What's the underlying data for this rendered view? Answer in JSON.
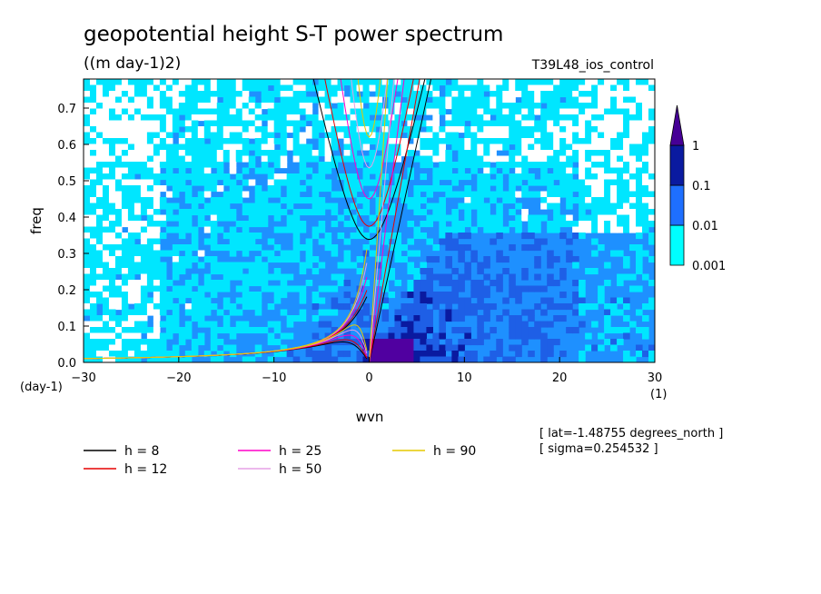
{
  "chart_data": {
    "type": "heatmap",
    "title": "geopotential height S-T power spectrum",
    "units": "((m day-1)2)",
    "experiment": "T39L48_ios_control",
    "xlabel": "wvn",
    "ylabel": "freq",
    "x_unit": "(1)",
    "y_unit": "(day-1)",
    "xlim": [
      -30,
      30
    ],
    "ylim": [
      0,
      0.78
    ],
    "x_ticks": [
      "-30",
      "-20",
      "-10",
      "0",
      "10",
      "20",
      "30"
    ],
    "y_ticks": [
      "0.0",
      "0.1",
      "0.2",
      "0.3",
      "0.4",
      "0.5",
      "0.6",
      "0.7"
    ],
    "colorbar": {
      "levels": [
        "0.001",
        "0.01",
        "0.1",
        "1"
      ],
      "colors": [
        "#00ffff",
        "#1e6fff",
        "#0a1aa0",
        "#460096"
      ]
    },
    "shade_colors": {
      "light": "#00e6ff",
      "mid": "#1e90ff",
      "dark": "#1e5fe6",
      "high": "#0a1aa0",
      "peak": "#5000a0",
      "white": "#ffffff"
    },
    "legend": [
      {
        "label": "h =  8",
        "color": "#000000"
      },
      {
        "label": "h = 25",
        "color": "#ff00c8"
      },
      {
        "label": "h = 90",
        "color": "#e6c800"
      },
      {
        "label": "h = 12",
        "color": "#e60000"
      },
      {
        "label": "h = 50",
        "color": "#e6a0e6"
      }
    ],
    "dispersion_curves": [
      {
        "h": 8,
        "color": "#000000"
      },
      {
        "h": 12,
        "color": "#e60000"
      },
      {
        "h": 25,
        "color": "#ff00c8"
      },
      {
        "h": 50,
        "color": "#e6a0e6"
      },
      {
        "h": 90,
        "color": "#e6c800"
      }
    ],
    "annotations": [
      "[ lat=-1.48755 degrees_north ]",
      "[ sigma=0.254532 ]"
    ]
  }
}
